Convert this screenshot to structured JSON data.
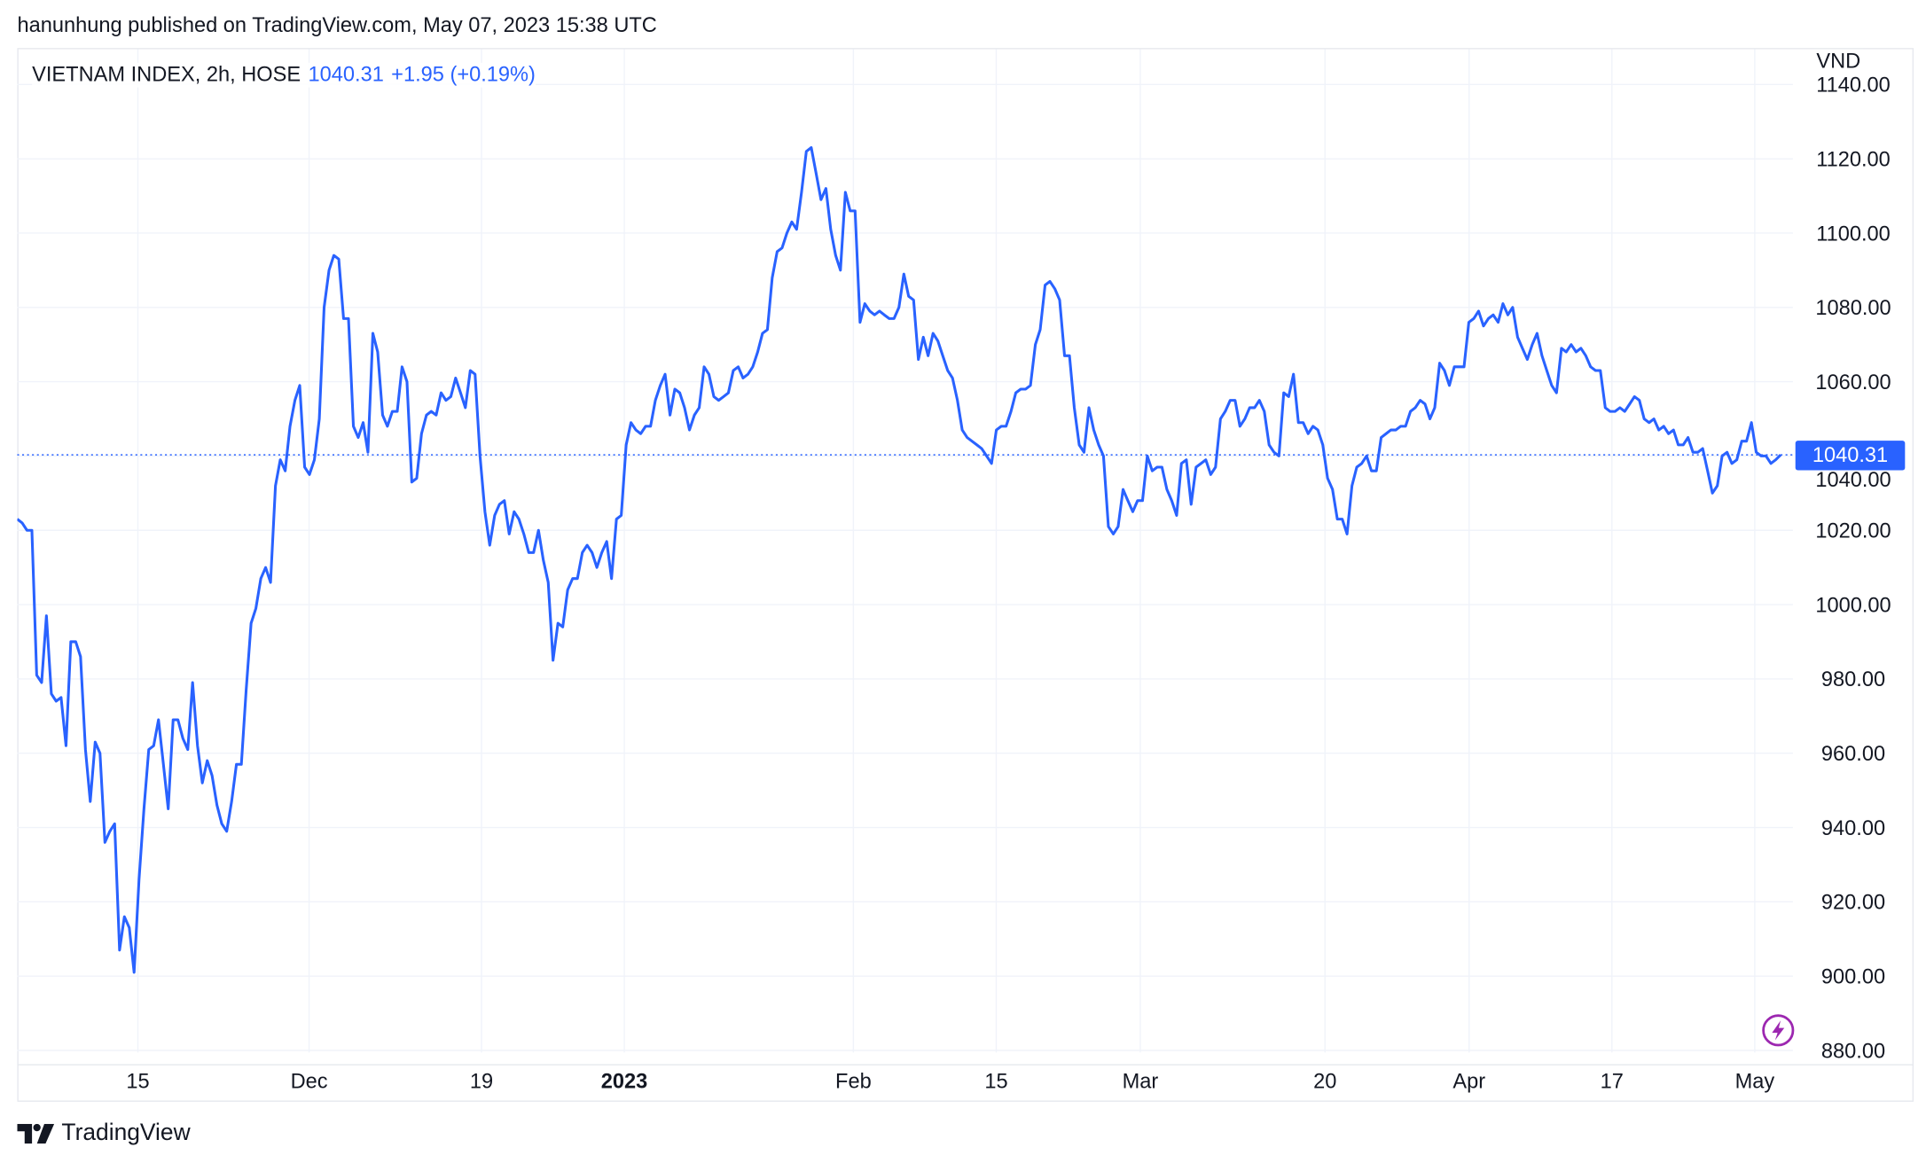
{
  "header": {
    "published": "hanunhung published on TradingView.com, May 07, 2023 15:38 UTC"
  },
  "legend": {
    "symbol": "VIETNAM INDEX, 2h, HOSE",
    "last": "1040.31",
    "change": "+1.95 (+0.19%)"
  },
  "axis": {
    "currency": "VND",
    "last_price_badge": "1040.31"
  },
  "footer": {
    "brand": "TradingView"
  },
  "colors": {
    "line": "#2962ff",
    "grid": "#f0f3fa",
    "badge": "#2962ff",
    "bolt": "#9c27b0"
  },
  "chart_data": {
    "type": "line",
    "title": "VIETNAM INDEX, 2h, HOSE",
    "ylabel": "VND",
    "ylim": [
      880,
      1140
    ],
    "yticks": [
      "1140.00",
      "1120.00",
      "1100.00",
      "1080.00",
      "1060.00",
      "1040.00",
      "1020.00",
      "1000.00",
      "980.00",
      "960.00",
      "940.00",
      "920.00",
      "900.00",
      "880.00"
    ],
    "xticks": [
      {
        "label": "15",
        "bold": false
      },
      {
        "label": "Dec",
        "bold": false
      },
      {
        "label": "19",
        "bold": false
      },
      {
        "label": "2023",
        "bold": true
      },
      {
        "label": "Feb",
        "bold": false
      },
      {
        "label": "15",
        "bold": false
      },
      {
        "label": "Mar",
        "bold": false
      },
      {
        "label": "20",
        "bold": false
      },
      {
        "label": "Apr",
        "bold": false
      },
      {
        "label": "17",
        "bold": false
      },
      {
        "label": "May",
        "bold": false
      }
    ],
    "grid": true,
    "last_value": 1040.31,
    "series": [
      {
        "name": "VIETNAM INDEX",
        "values": [
          1023,
          1022,
          1020,
          1020,
          981,
          979,
          997,
          976,
          974,
          975,
          962,
          990,
          990,
          986,
          961,
          947,
          963,
          960,
          936,
          939,
          941,
          907,
          916,
          913,
          901,
          926,
          945,
          961,
          962,
          969,
          957,
          945,
          969,
          969,
          964,
          961,
          979,
          962,
          952,
          958,
          954,
          946,
          941,
          939,
          947,
          957,
          957,
          977,
          995,
          999,
          1007,
          1010,
          1006,
          1032,
          1039,
          1036,
          1048,
          1055,
          1059,
          1037,
          1035,
          1039,
          1050,
          1080,
          1090,
          1094,
          1093,
          1077,
          1077,
          1048,
          1045,
          1049,
          1041,
          1073,
          1068,
          1051,
          1048,
          1052,
          1052,
          1064,
          1060,
          1033,
          1034,
          1046,
          1051,
          1052,
          1051,
          1057,
          1055,
          1056,
          1061,
          1057,
          1053,
          1063,
          1062,
          1040,
          1025,
          1016,
          1024,
          1027,
          1028,
          1019,
          1025,
          1023,
          1019,
          1014,
          1014,
          1020,
          1012,
          1006,
          985,
          995,
          994,
          1004,
          1007,
          1007,
          1014,
          1016,
          1014,
          1010,
          1014,
          1017,
          1007,
          1023,
          1024,
          1043,
          1049,
          1047,
          1046,
          1048,
          1048,
          1055,
          1059,
          1062,
          1051,
          1058,
          1057,
          1053,
          1047,
          1051,
          1053,
          1064,
          1062,
          1056,
          1055,
          1056,
          1057,
          1063,
          1064,
          1061,
          1062,
          1064,
          1068,
          1073,
          1074,
          1088,
          1095,
          1096,
          1100,
          1103,
          1101,
          1111,
          1122,
          1123,
          1116,
          1109,
          1112,
          1101,
          1094,
          1090,
          1111,
          1106,
          1106,
          1076,
          1081,
          1079,
          1078,
          1079,
          1078,
          1077,
          1077,
          1080,
          1089,
          1083,
          1082,
          1066,
          1072,
          1067,
          1073,
          1071,
          1067,
          1063,
          1061,
          1055,
          1047,
          1045,
          1044,
          1043,
          1042,
          1040,
          1038,
          1047,
          1048,
          1048,
          1052,
          1057,
          1058,
          1058,
          1059,
          1070,
          1074,
          1086,
          1087,
          1085,
          1082,
          1067,
          1067,
          1053,
          1043,
          1041,
          1053,
          1047,
          1043,
          1040,
          1021,
          1019,
          1021,
          1031,
          1028,
          1025,
          1028,
          1028,
          1040,
          1036,
          1037,
          1037,
          1031,
          1028,
          1024,
          1038,
          1039,
          1027,
          1037,
          1038,
          1039,
          1035,
          1037,
          1050,
          1052,
          1055,
          1055,
          1048,
          1050,
          1053,
          1053,
          1055,
          1052,
          1043,
          1041,
          1040,
          1057,
          1056,
          1062,
          1049,
          1049,
          1046,
          1048,
          1047,
          1043,
          1034,
          1031,
          1023,
          1023,
          1019,
          1032,
          1037,
          1038,
          1040,
          1036,
          1036,
          1045,
          1046,
          1047,
          1047,
          1048,
          1048,
          1052,
          1053,
          1055,
          1054,
          1050,
          1053,
          1065,
          1063,
          1059,
          1064,
          1064,
          1064,
          1076,
          1077,
          1079,
          1075,
          1077,
          1078,
          1076,
          1081,
          1078,
          1080,
          1072,
          1069,
          1066,
          1070,
          1073,
          1067,
          1063,
          1059,
          1057,
          1069,
          1068,
          1070,
          1068,
          1069,
          1067,
          1064,
          1063,
          1063,
          1053,
          1052,
          1052,
          1053,
          1052,
          1054,
          1056,
          1055,
          1050,
          1049,
          1050,
          1047,
          1048,
          1046,
          1047,
          1043,
          1043,
          1045,
          1041,
          1041,
          1042,
          1036,
          1030,
          1032,
          1040,
          1041,
          1038,
          1039,
          1044,
          1044,
          1049,
          1041,
          1040,
          1040,
          1038,
          1039,
          1040.31
        ]
      }
    ]
  }
}
